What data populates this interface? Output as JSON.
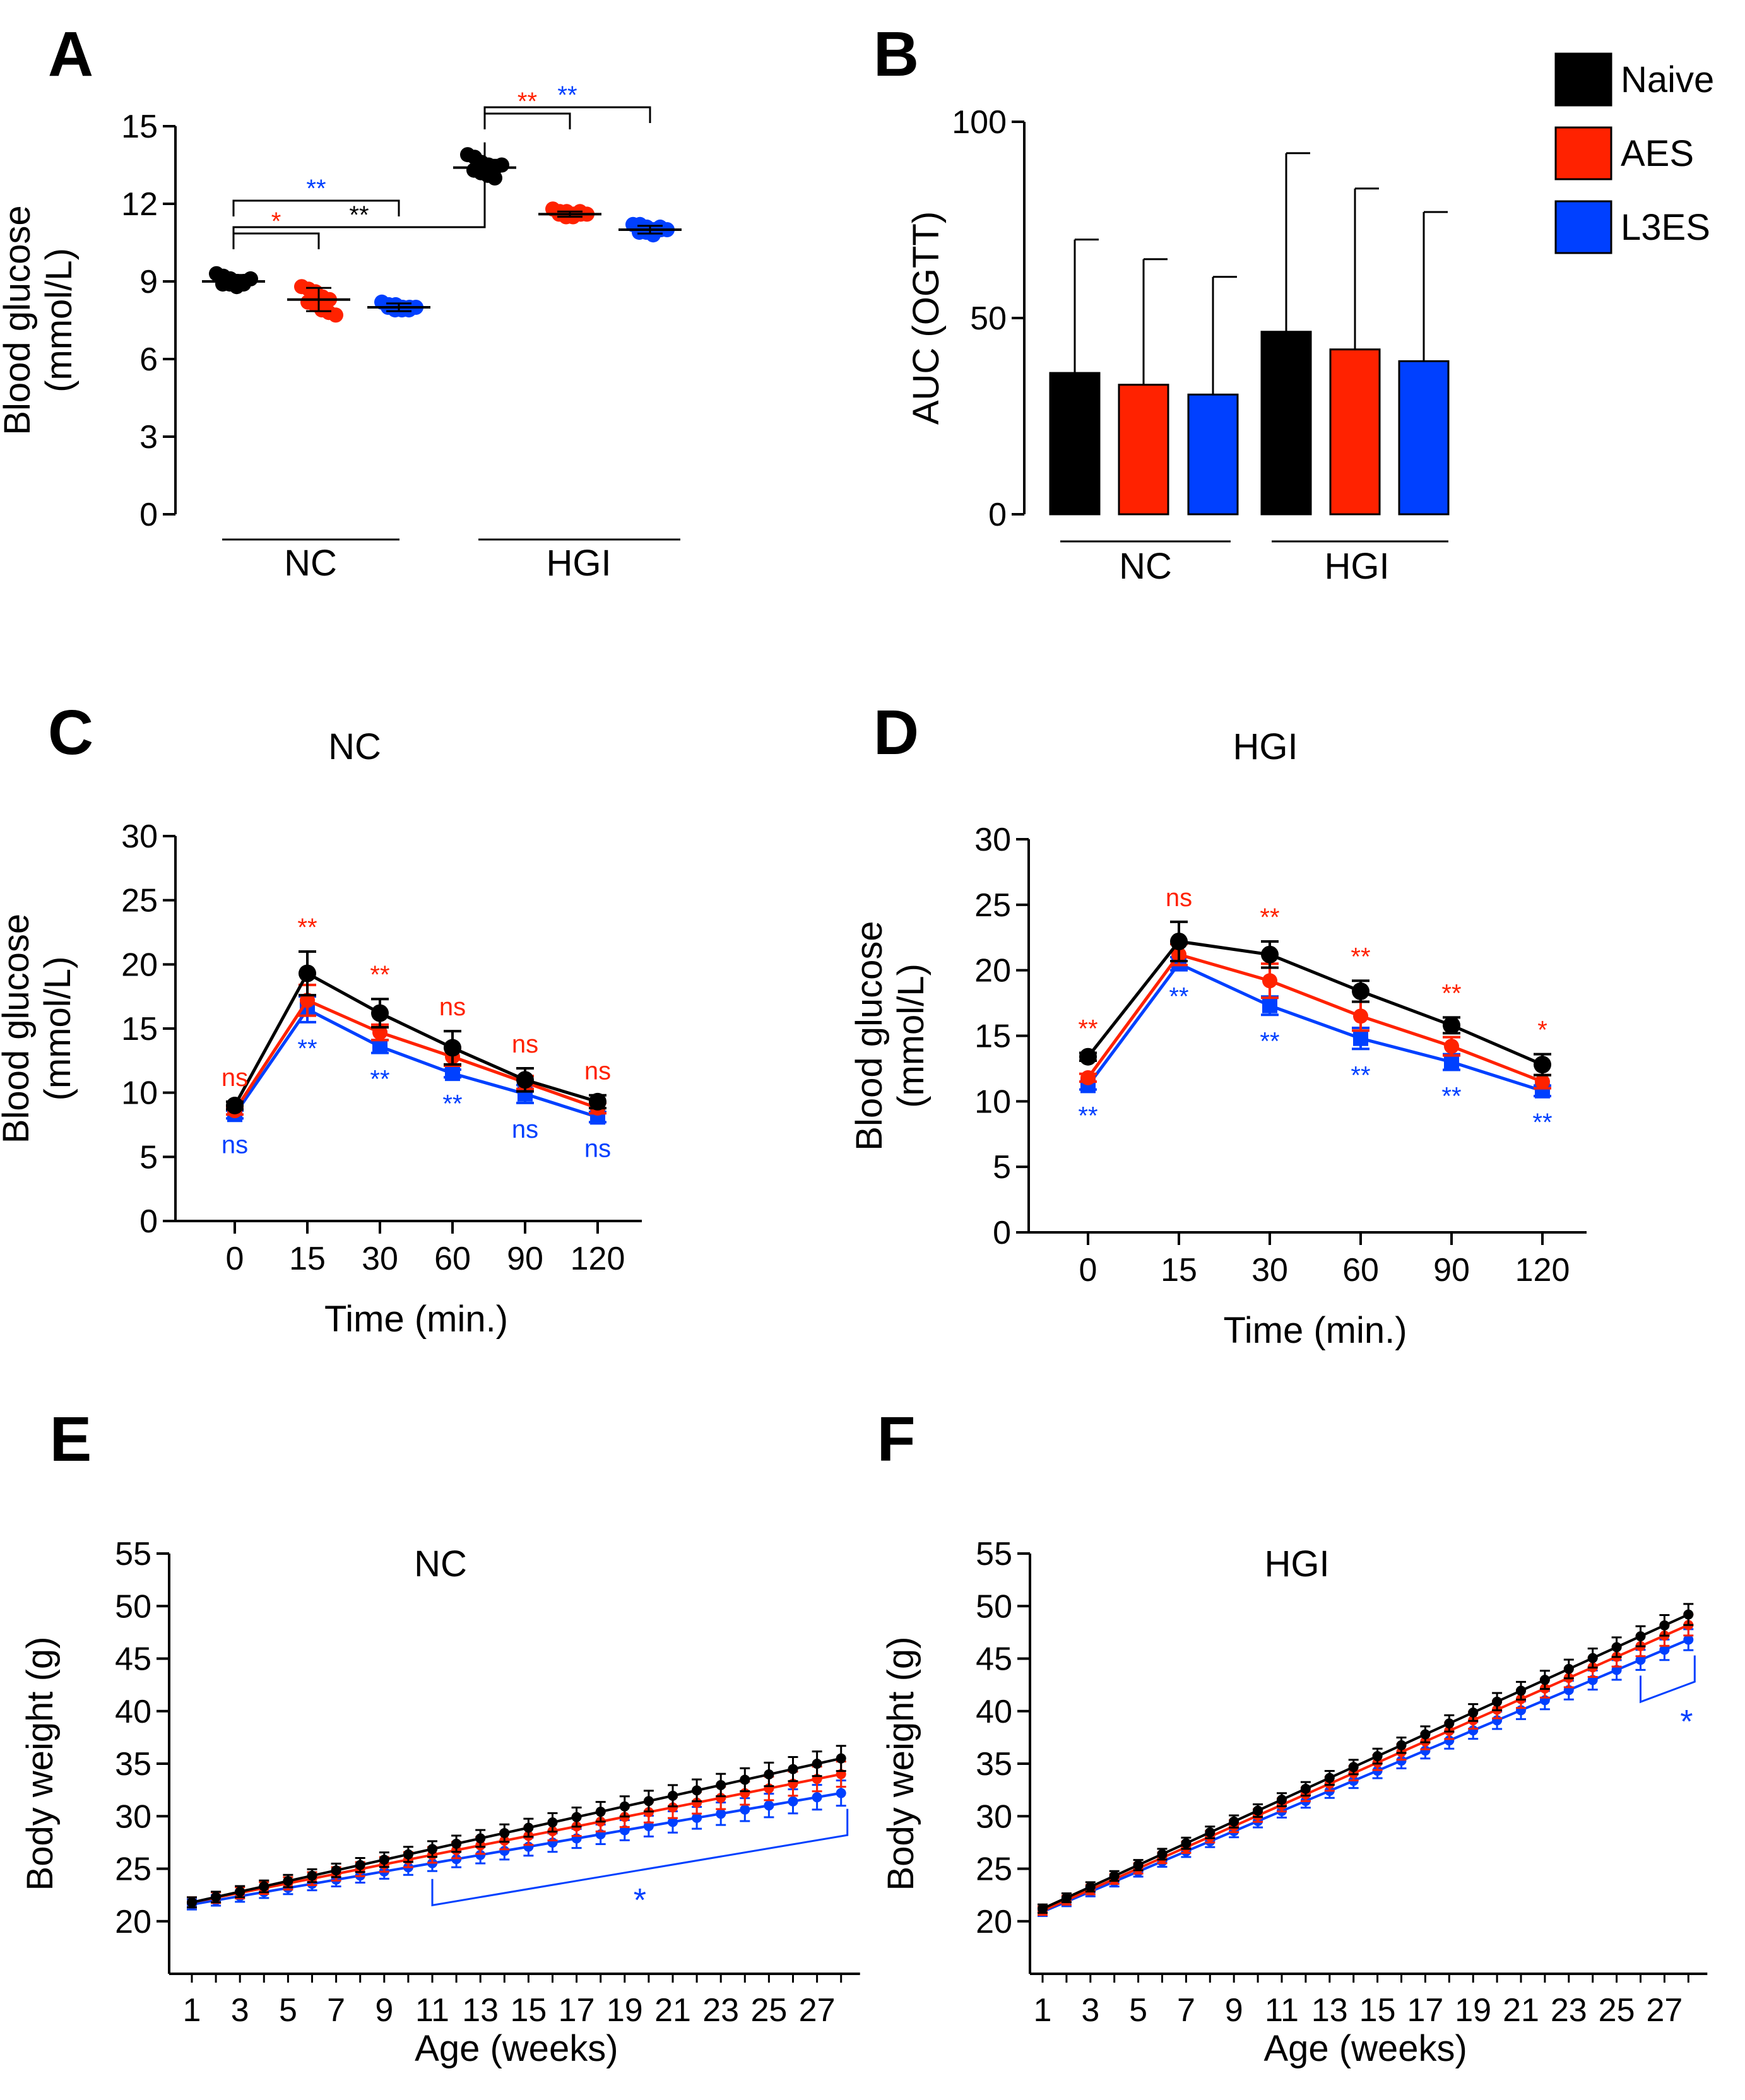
{
  "colors": {
    "naive": "#000000",
    "aes": "#ff2200",
    "l3es": "#0040ff"
  },
  "legend": [
    {
      "label": "Naive",
      "color": "#000000"
    },
    {
      "label": "AES",
      "color": "#ff2200"
    },
    {
      "label": "L3ES",
      "color": "#0040ff"
    }
  ],
  "chart_data": [
    {
      "panel": "A",
      "type": "scatter",
      "ylabel": [
        "Blood glucose",
        "(mmol/L)"
      ],
      "ylim": [
        0,
        15
      ],
      "yticks": [
        0,
        3,
        6,
        9,
        12,
        15
      ],
      "groups": [
        "NC",
        "HGI"
      ],
      "series": [
        {
          "name": "NC Naive",
          "group": "NC",
          "color": "#000000",
          "mean": 9.0,
          "sd": 0.25,
          "points": [
            9.3,
            9.2,
            9.1,
            9.0,
            9.0,
            8.9,
            8.9,
            8.8,
            8.9,
            9.1
          ]
        },
        {
          "name": "NC AES",
          "group": "NC",
          "color": "#ff2200",
          "mean": 8.3,
          "sd": 0.45,
          "points": [
            8.8,
            8.7,
            8.6,
            8.4,
            8.3,
            8.2,
            8.1,
            7.9,
            7.8,
            7.7
          ]
        },
        {
          "name": "NC L3ES",
          "group": "NC",
          "color": "#0040ff",
          "mean": 8.0,
          "sd": 0.15,
          "points": [
            8.2,
            8.1,
            8.1,
            8.0,
            8.0,
            8.0,
            7.9,
            7.9,
            7.9,
            8.0
          ]
        },
        {
          "name": "HGI Naive",
          "group": "HGI",
          "color": "#000000",
          "mean": 13.4,
          "sd": 0.3,
          "points": [
            13.9,
            13.8,
            13.6,
            13.5,
            13.4,
            13.3,
            13.2,
            13.1,
            13.0,
            13.5
          ]
        },
        {
          "name": "HGI AES",
          "group": "HGI",
          "color": "#ff2200",
          "mean": 11.6,
          "sd": 0.1,
          "points": [
            11.8,
            11.7,
            11.7,
            11.6,
            11.6,
            11.6,
            11.5,
            11.5,
            11.7,
            11.6
          ]
        },
        {
          "name": "HGI L3ES",
          "group": "HGI",
          "color": "#0040ff",
          "mean": 11.0,
          "sd": 0.15,
          "points": [
            11.2,
            11.2,
            11.1,
            11.0,
            11.0,
            10.9,
            10.9,
            10.8,
            11.1,
            11.0
          ]
        }
      ],
      "comparisons": [
        {
          "from": 0,
          "to": 3,
          "label": "**",
          "color": "#000000"
        },
        {
          "from": 0,
          "to": 1,
          "label": "*",
          "color": "#ff2200"
        },
        {
          "from": 0,
          "to": 2,
          "label": "**",
          "color": "#0040ff"
        },
        {
          "from": 3,
          "to": 4,
          "label": "**",
          "color": "#ff2200"
        },
        {
          "from": 3,
          "to": 5,
          "label": "**",
          "color": "#0040ff"
        }
      ]
    },
    {
      "panel": "B",
      "type": "bar",
      "ylabel": "AUC (OGTT)",
      "ylim": [
        0,
        100
      ],
      "yticks": [
        0,
        50,
        100
      ],
      "groups": [
        "NC",
        "HGI"
      ],
      "bars": [
        {
          "group": "NC",
          "series": "Naive",
          "color": "#000000",
          "value": 36,
          "error": 34
        },
        {
          "group": "NC",
          "series": "AES",
          "color": "#ff2200",
          "value": 33,
          "error": 32
        },
        {
          "group": "NC",
          "series": "L3ES",
          "color": "#0040ff",
          "value": 30.5,
          "error": 30
        },
        {
          "group": "HGI",
          "series": "Naive",
          "color": "#000000",
          "value": 46.5,
          "error": 45.5
        },
        {
          "group": "HGI",
          "series": "AES",
          "color": "#ff2200",
          "value": 42,
          "error": 41
        },
        {
          "group": "HGI",
          "series": "L3ES",
          "color": "#0040ff",
          "value": 39,
          "error": 38
        }
      ]
    },
    {
      "panel": "C",
      "type": "line",
      "title": "NC",
      "xlabel": "Time (min.)",
      "ylabel": [
        "Blood glucose",
        "(mmol/L)"
      ],
      "ylim": [
        0,
        30
      ],
      "yticks": [
        0,
        5,
        10,
        15,
        20,
        25,
        30
      ],
      "categories": [
        "0",
        "15",
        "30",
        "60",
        "90",
        "120"
      ],
      "series": [
        {
          "name": "Naive",
          "color": "#000000",
          "values": [
            9.0,
            19.3,
            16.2,
            13.5,
            11.0,
            9.3
          ],
          "errors": [
            0.3,
            1.7,
            1.1,
            1.3,
            0.9,
            0.5
          ]
        },
        {
          "name": "AES",
          "color": "#ff2200",
          "values": [
            8.6,
            17.2,
            14.7,
            12.8,
            10.8,
            8.8
          ],
          "errors": [
            0.3,
            1.2,
            0.6,
            0.7,
            0.5,
            0.4
          ]
        },
        {
          "name": "L3ES",
          "color": "#0040ff",
          "values": [
            8.3,
            16.5,
            13.6,
            11.5,
            9.9,
            8.1
          ],
          "errors": [
            0.3,
            1.0,
            0.5,
            0.3,
            0.7,
            0.4
          ]
        }
      ],
      "annotations_aes": [
        "ns",
        "**",
        "**",
        "ns",
        "ns",
        "ns"
      ],
      "annotations_l3es": [
        "ns",
        "**",
        "**",
        "**",
        "ns",
        "ns"
      ]
    },
    {
      "panel": "D",
      "type": "line",
      "title": "HGI",
      "xlabel": "Time (min.)",
      "ylabel": [
        "Blood glucose",
        "(mmol/L)"
      ],
      "ylim": [
        0,
        30
      ],
      "yticks": [
        0,
        5,
        10,
        15,
        20,
        25,
        30
      ],
      "categories": [
        "0",
        "15",
        "30",
        "60",
        "90",
        "120"
      ],
      "series": [
        {
          "name": "Naive",
          "color": "#000000",
          "values": [
            13.4,
            22.2,
            21.2,
            18.4,
            15.8,
            12.8
          ],
          "errors": [
            0.3,
            1.5,
            1.0,
            0.8,
            0.6,
            0.8
          ]
        },
        {
          "name": "AES",
          "color": "#ff2200",
          "values": [
            11.8,
            21.2,
            19.2,
            16.5,
            14.2,
            11.5
          ],
          "errors": [
            0.3,
            0.8,
            1.3,
            1.1,
            0.7,
            0.5
          ]
        },
        {
          "name": "L3ES",
          "color": "#0040ff",
          "values": [
            11.2,
            20.5,
            17.3,
            14.8,
            13.0,
            10.8
          ],
          "errors": [
            0.3,
            0.5,
            0.7,
            0.8,
            0.6,
            0.4
          ]
        }
      ],
      "annotations_aes": [
        "**",
        "ns",
        "**",
        "**",
        "**",
        "*"
      ],
      "annotations_l3es": [
        "**",
        "**",
        "**",
        "**",
        "**",
        "**"
      ]
    },
    {
      "panel": "E",
      "type": "line",
      "title": "NC",
      "xlabel": "Age (weeks)",
      "ylabel": "Body weight (g)",
      "ylim": [
        15,
        55
      ],
      "yticks": [
        20,
        25,
        30,
        35,
        40,
        45,
        50,
        55
      ],
      "xticks": [
        "1",
        "3",
        "5",
        "7",
        "9",
        "11",
        "13",
        "15",
        "17",
        "19",
        "21",
        "23",
        "25",
        "27"
      ],
      "weeks": 28,
      "series": [
        {
          "name": "Naive",
          "color": "#000000",
          "start": 21.8,
          "end": 35.5,
          "error": 1.2
        },
        {
          "name": "AES",
          "color": "#ff2200",
          "start": 21.8,
          "end": 34.0,
          "error": 1.2
        },
        {
          "name": "L3ES",
          "color": "#0040ff",
          "start": 21.6,
          "end": 32.2,
          "error": 1.2
        }
      ],
      "bracket": {
        "from_week": 11,
        "to_week": 28,
        "label": "*",
        "color": "#0040ff"
      }
    },
    {
      "panel": "F",
      "type": "line",
      "title": "HGI",
      "xlabel": "Age (weeks)",
      "ylabel": "Body weight (g)",
      "ylim": [
        15,
        55
      ],
      "yticks": [
        20,
        25,
        30,
        35,
        40,
        45,
        50,
        55
      ],
      "xticks": [
        "1",
        "3",
        "5",
        "7",
        "9",
        "11",
        "13",
        "15",
        "17",
        "19",
        "21",
        "23",
        "25",
        "27"
      ],
      "weeks": 28,
      "series": [
        {
          "name": "Naive",
          "color": "#000000",
          "start": 21.2,
          "end": 49.2,
          "error": 1.0
        },
        {
          "name": "AES",
          "color": "#ff2200",
          "start": 21.0,
          "end": 48.2,
          "error": 1.0
        },
        {
          "name": "L3ES",
          "color": "#0040ff",
          "start": 20.9,
          "end": 46.8,
          "error": 1.0
        }
      ],
      "bracket": {
        "from_week": 26,
        "to_week": 28,
        "label": "*",
        "color": "#0040ff"
      }
    }
  ]
}
